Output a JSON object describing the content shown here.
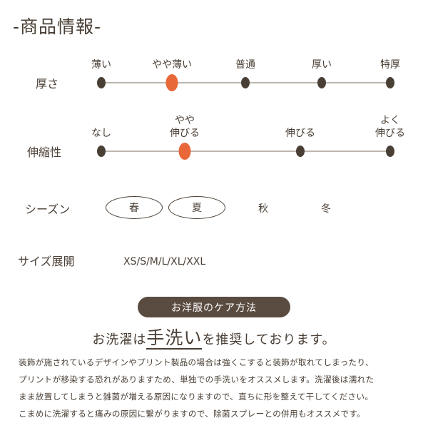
{
  "title": "-商品情報-",
  "thickness": {
    "label": "厚さ",
    "options": [
      "薄い",
      "やや薄い",
      "普通",
      "厚い",
      "特厚"
    ],
    "selected": "やや薄い"
  },
  "stretch": {
    "label": "伸縮性",
    "options": [
      "なし",
      "やや\n伸びる",
      "伸びる",
      "よく\n伸びる"
    ],
    "selected": "やや\n伸びる"
  },
  "season": {
    "label": "シーズン",
    "options": [
      "春",
      "夏",
      "秋",
      "冬"
    ],
    "selected": [
      "春",
      "夏"
    ]
  },
  "size": {
    "label": "サイズ展開",
    "value": "XS/S/M/L/XL/XXL"
  },
  "care": {
    "badge": "お洋服のケア方法",
    "headline_pre": "お洗濯は",
    "headline_em": "手洗い",
    "headline_post": "を推奨しております。",
    "lines": [
      "装飾が施されているデザインやプリント製品の場合は強くこすると装飾が取れてしまったり、",
      "プリントが移染する恐れがありますため、単独での手洗いをオススメします。洗濯後は濡れた",
      "まま放置してしまうと雑菌が増える原因になりますので、直ちに形を整えて干してください。",
      "こまめに洗濯すると痛みの原因に繋がりますので、除菌スプレーとの併用もオススメです。"
    ]
  },
  "colors": {
    "brown": "#4a3f35",
    "accent": "#e8683a"
  }
}
